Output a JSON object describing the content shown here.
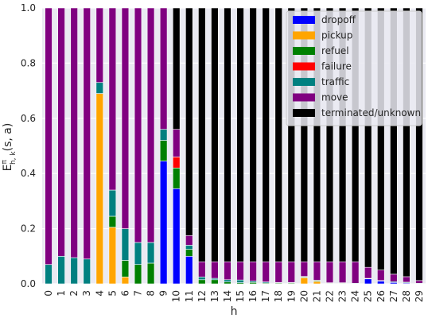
{
  "chart_data": {
    "type": "bar",
    "stacked": true,
    "title": "",
    "xlabel": "h",
    "ylabel": "E",
    "ylabel_super": "π",
    "ylabel_sub": "h, k",
    "ylabel_suffix": "(s, a)",
    "ylim": [
      0,
      1.0
    ],
    "yticks": [
      "0.0",
      "0.2",
      "0.4",
      "0.6",
      "0.8",
      "1.0"
    ],
    "grid": true,
    "legend_position": "top-right",
    "categories": [
      "0",
      "1",
      "2",
      "3",
      "4",
      "5",
      "6",
      "7",
      "8",
      "9",
      "10",
      "11",
      "12",
      "13",
      "14",
      "15",
      "16",
      "17",
      "18",
      "19",
      "20",
      "21",
      "22",
      "23",
      "24",
      "25",
      "26",
      "27",
      "28",
      "29"
    ],
    "series": [
      {
        "name": "dropoff",
        "color": "#0000ff",
        "values": [
          0,
          0,
          0,
          0,
          0,
          0,
          0,
          0,
          0,
          0.445,
          0.345,
          0.1,
          0,
          0,
          0,
          0,
          0,
          0,
          0,
          0,
          0,
          0,
          0,
          0,
          0,
          0.018,
          0.01,
          0.005,
          0.003,
          0
        ]
      },
      {
        "name": "pickup",
        "color": "#ffa500",
        "values": [
          0,
          0,
          0,
          0,
          0.69,
          0.205,
          0.025,
          0,
          0,
          0,
          0,
          0,
          0,
          0,
          0,
          0,
          0,
          0,
          0,
          0,
          0.022,
          0.008,
          0,
          0,
          0,
          0,
          0,
          0,
          0,
          0
        ]
      },
      {
        "name": "refuel",
        "color": "#008000",
        "values": [
          0,
          0,
          0,
          0,
          0,
          0.04,
          0.06,
          0.07,
          0.075,
          0.075,
          0.075,
          0.025,
          0.015,
          0.015,
          0.007,
          0.004,
          0.005,
          0.003,
          0.003,
          0.003,
          0.003,
          0.003,
          0.002,
          0.002,
          0,
          0,
          0,
          0,
          0,
          0
        ]
      },
      {
        "name": "failure",
        "color": "#ff0000",
        "values": [
          0,
          0,
          0,
          0,
          0,
          0,
          0,
          0,
          0,
          0,
          0.04,
          0,
          0,
          0,
          0,
          0,
          0,
          0,
          0,
          0,
          0,
          0,
          0,
          0,
          0,
          0,
          0,
          0,
          0,
          0
        ]
      },
      {
        "name": "traffic",
        "color": "#008080",
        "values": [
          0.07,
          0.1,
          0.095,
          0.09,
          0.04,
          0.095,
          0.115,
          0.08,
          0.075,
          0.04,
          0,
          0.015,
          0.01,
          0.005,
          0.008,
          0.01,
          0.005,
          0.004,
          0.002,
          0.002,
          0.002,
          0.002,
          0.002,
          0.002,
          0.002,
          0.002,
          0.002,
          0.003,
          0.003,
          0.002
        ]
      },
      {
        "name": "move",
        "color": "#800080",
        "values": [
          0.93,
          0.9,
          0.905,
          0.91,
          0.27,
          0.66,
          0.8,
          0.85,
          0.85,
          0.44,
          0.1,
          0.035,
          0.055,
          0.06,
          0.065,
          0.066,
          0.07,
          0.073,
          0.075,
          0.075,
          0.053,
          0.067,
          0.076,
          0.076,
          0.078,
          0.04,
          0.038,
          0.027,
          0.02,
          0.01
        ]
      },
      {
        "name": "terminated/unknown",
        "color": "#000000",
        "values": [
          0,
          0,
          0,
          0,
          0,
          0,
          0,
          0,
          0,
          0,
          0.44,
          0.825,
          0.92,
          0.92,
          0.92,
          0.92,
          0.92,
          0.92,
          0.92,
          0.92,
          0.92,
          0.92,
          0.92,
          0.92,
          0.92,
          0.94,
          0.95,
          0.965,
          0.974,
          0.988
        ]
      }
    ]
  }
}
